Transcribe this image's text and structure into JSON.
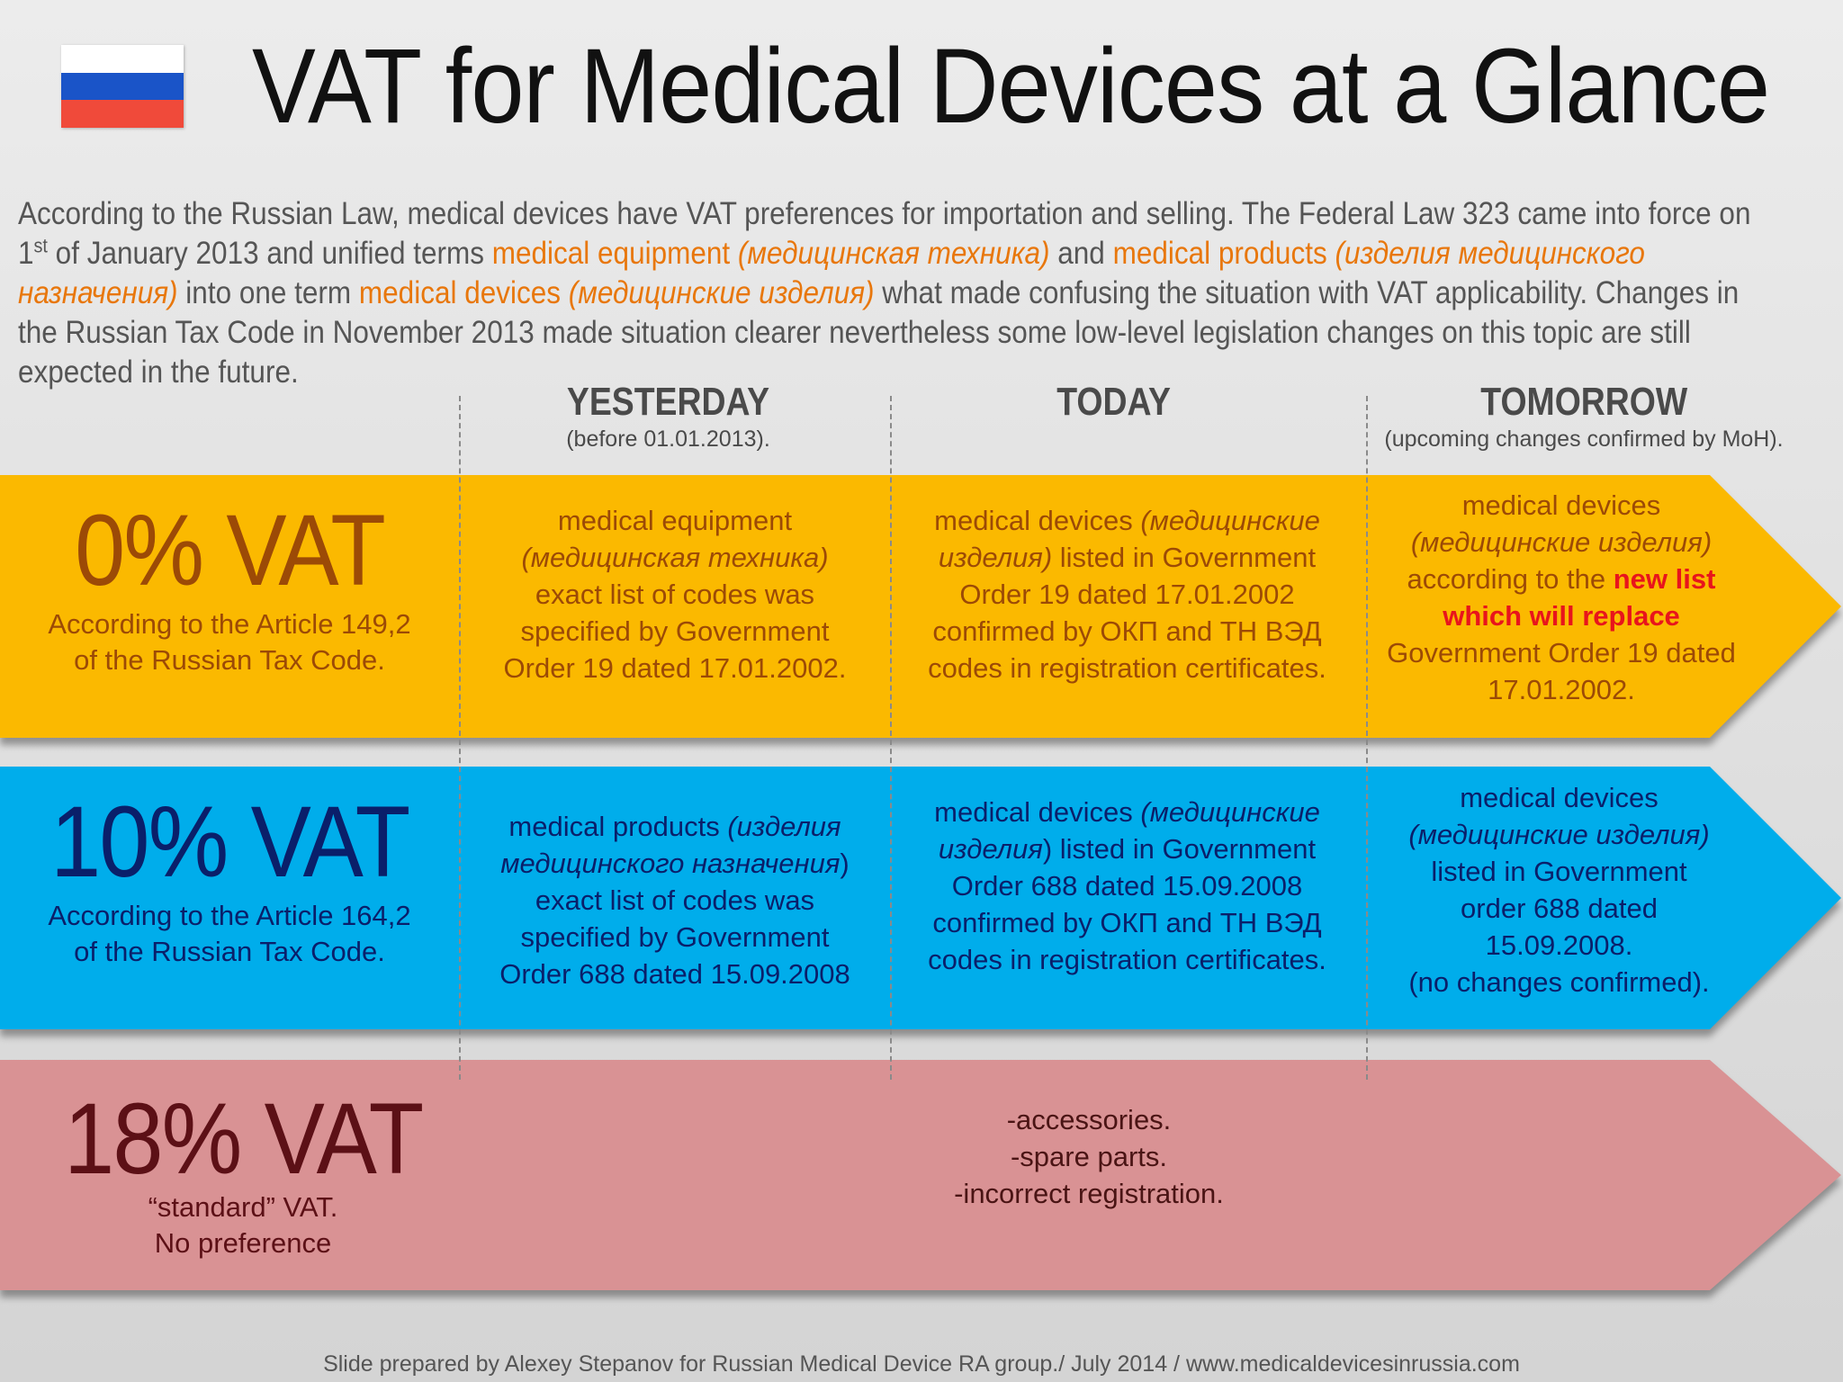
{
  "colors": {
    "yellow_band": "#fbb900",
    "blue_band": "#00adeb",
    "pink_band": "#d99294",
    "highlight_orange": "#e8770c",
    "highlight_red": "#e8141c",
    "zero_rate": "#9c4a06",
    "ten_rate": "#0a1f6a",
    "eighteen_rate": "#5c1016",
    "flag_white": "#ffffff",
    "flag_blue": "#1a54c8",
    "flag_red": "#f04a3a"
  },
  "header": {
    "title": "VAT for Medical Devices at a Glance",
    "flag_icon": "russia-flag"
  },
  "intro": {
    "t1": "According to the Russian Law,  medical devices have VAT preferences for importation and selling. The Federal  Law 323 came into force on 1",
    "sup": "st",
    "t2": " of January 2013 and unified terms ",
    "h1": "medical equipment ",
    "h1_ru": "(медицинская техника)",
    "t3": " and ",
    "h2": "medical products ",
    "h2_ru": "(изделия медицинского назначения)",
    "t4": " into one term ",
    "h3": "medical devices ",
    "h3_ru": "(медицинские изделия)",
    "t5": "  what made confusing the situation with  VAT applicability. Changes in the Russian Tax Code in November 2013 made situation clearer nevertheless some low-level legislation changes on this topic are  still expected in the future."
  },
  "columns": [
    {
      "heading": "YESTERDAY",
      "sub": "(before 01.01.2013)."
    },
    {
      "heading": "TODAY",
      "sub": ""
    },
    {
      "heading": "TOMORROW",
      "sub": "(upcoming changes confirmed by MoH)."
    }
  ],
  "rows": {
    "zero": {
      "rate": "0% VAT",
      "sub1": "According to the Article 149,2",
      "sub2": "of the  Russian Tax Code.",
      "yesterday": {
        "l1": "medical equipment",
        "l2_it": "(медицинская техника)",
        "l3": "exact list of codes was",
        "l4": "specified by Government",
        "l5": "Order 19 dated 17.01.2002."
      },
      "today": {
        "l1a": "medical devices ",
        "l1b_it": "(медицинские",
        "l2a_it": "изделия)",
        "l2b": " listed in Government",
        "l3": "Order 19 dated 17.01.2002",
        "l4": "confirmed by ОКП and ТН ВЭД",
        "l5": "codes in registration certificates."
      },
      "tomorrow": {
        "l1": "medical devices",
        "l2_it": "(медицинские изделия)",
        "l3a": "according to the ",
        "l3b_red": "new list",
        "l4_red": "which will replace",
        "l5": "Government Order 19 dated",
        "l6": "17.01.2002."
      }
    },
    "ten": {
      "rate": "10% VAT",
      "sub1": "According to the Article 164,2",
      "sub2": "of  the  Russian Tax Code.",
      "yesterday": {
        "l1a": "medical products ",
        "l1b_it": "(изделия",
        "l2a_it": "медицинского назначения",
        "l2b": ")",
        "l3": "exact list of codes was",
        "l4": "specified by Government",
        "l5": "Order 688 dated 15.09.2008"
      },
      "today": {
        "l1a": "medical devices ",
        "l1b_it": "(медицинские",
        "l2a_it": "изделия",
        "l2b": ") listed in Government",
        "l3": "Order 688 dated 15.09.2008",
        "l4": "confirmed by ОКП and ТН ВЭД",
        "l5": "codes in registration certificates."
      },
      "tomorrow": {
        "l1": "medical devices",
        "l2_it": "(медицинские изделия)",
        "l3": "listed in Government",
        "l4": "order 688 dated",
        "l5": "15.09.2008.",
        "l6": "(no changes confirmed)."
      }
    },
    "eighteen": {
      "rate": "18% VAT",
      "sub1": "“standard” VAT.",
      "sub2": "No preference",
      "items": [
        "-accessories.",
        "-spare parts.",
        "-incorrect registration."
      ]
    }
  },
  "footer": "Slide prepared by Alexey Stepanov for Russian  Medical Device RA group./ July 2014 / www.medicaldevicesinrussia.com"
}
